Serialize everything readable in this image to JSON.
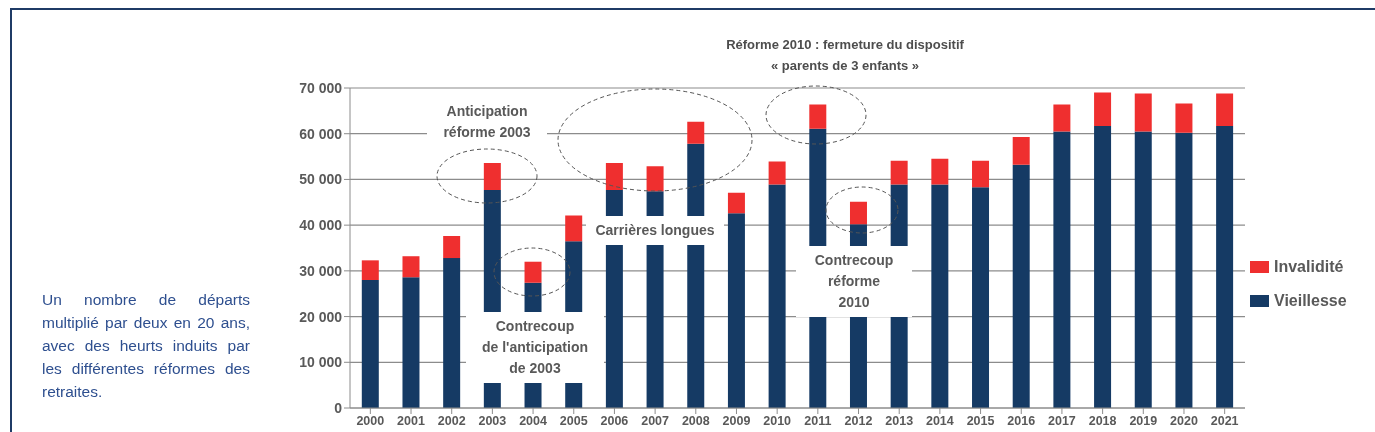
{
  "chart_data": {
    "type": "bar",
    "stacked": true,
    "categories": [
      "2000",
      "2001",
      "2002",
      "2003",
      "2004",
      "2005",
      "2006",
      "2007",
      "2008",
      "2009",
      "2010",
      "2011",
      "2012",
      "2013",
      "2014",
      "2015",
      "2016",
      "2017",
      "2018",
      "2019",
      "2020",
      "2021"
    ],
    "series": [
      {
        "name": "Vieillesse",
        "color": "#153a64",
        "values": [
          28000,
          28600,
          32800,
          47700,
          27400,
          36500,
          47700,
          47400,
          57800,
          42600,
          48900,
          61100,
          40200,
          48900,
          48900,
          48300,
          53200,
          60500,
          61700,
          60500,
          60200,
          61700
        ]
      },
      {
        "name": "Invalidité",
        "color": "#ef2f2f",
        "values": [
          4300,
          4600,
          4800,
          5900,
          4600,
          5600,
          5900,
          5500,
          4800,
          4500,
          5000,
          5300,
          4900,
          5200,
          5600,
          5800,
          6100,
          5900,
          7300,
          8300,
          6400,
          7100
        ]
      }
    ],
    "ylim": [
      0,
      70000
    ],
    "yticks": [
      {
        "value": 0,
        "label": "0"
      },
      {
        "value": 10000,
        "label": "10 000"
      },
      {
        "value": 20000,
        "label": "20 000"
      },
      {
        "value": 30000,
        "label": "30 000"
      },
      {
        "value": 40000,
        "label": "40 000"
      },
      {
        "value": 50000,
        "label": "50 000"
      },
      {
        "value": 60000,
        "label": "60 000"
      },
      {
        "value": 70000,
        "label": "70 000"
      }
    ],
    "grid": "y",
    "legend": "right",
    "annotations": [
      "Réforme 2010 : fermeture du dispositif\n« parents de 3 enfants »",
      "Anticipation\nréforme 2003",
      "Carrières longues",
      "Contrecoup\nde l'anticipation\nde 2003",
      "Contrecoup\nréforme\n2010",
      "Un nombre de départs multiplié par deux en 20 ans, avec des heurts induits par les différentes réformes des retraites."
    ]
  }
}
